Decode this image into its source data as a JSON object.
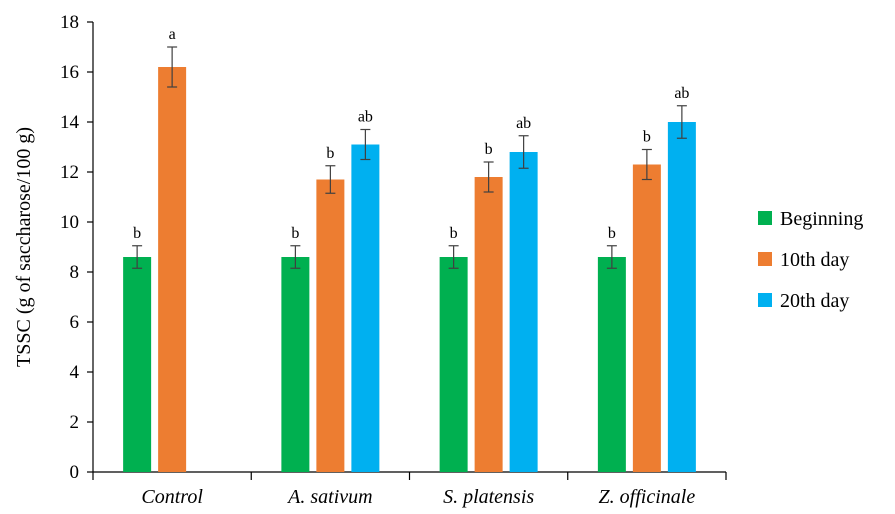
{
  "chart_data": {
    "type": "bar",
    "ylabel": "TSSC (g of saccharose/100 g)",
    "ylim": [
      0,
      18
    ],
    "yticks": [
      0,
      2,
      4,
      6,
      8,
      10,
      12,
      14,
      16,
      18
    ],
    "categories": [
      "Control",
      "A. sativum",
      "S. platensis",
      "Z. officinale"
    ],
    "legend_position": "right",
    "series": [
      {
        "name": "Beginning",
        "color": "#00b050",
        "values": [
          8.6,
          8.6,
          8.6,
          8.6
        ],
        "errors": [
          0.45,
          0.45,
          0.45,
          0.45
        ],
        "labels": [
          "b",
          "b",
          "b",
          "b"
        ]
      },
      {
        "name": "10th day",
        "color": "#ed7d31",
        "values": [
          16.2,
          11.7,
          11.8,
          12.3
        ],
        "errors": [
          0.8,
          0.55,
          0.6,
          0.6
        ],
        "labels": [
          "a",
          "b",
          "b",
          "b"
        ]
      },
      {
        "name": "20th day",
        "color": "#00b0f0",
        "values": [
          null,
          13.1,
          12.8,
          14.0
        ],
        "errors": [
          null,
          0.6,
          0.65,
          0.65
        ],
        "labels": [
          "",
          "ab",
          "ab",
          "ab"
        ]
      }
    ]
  }
}
